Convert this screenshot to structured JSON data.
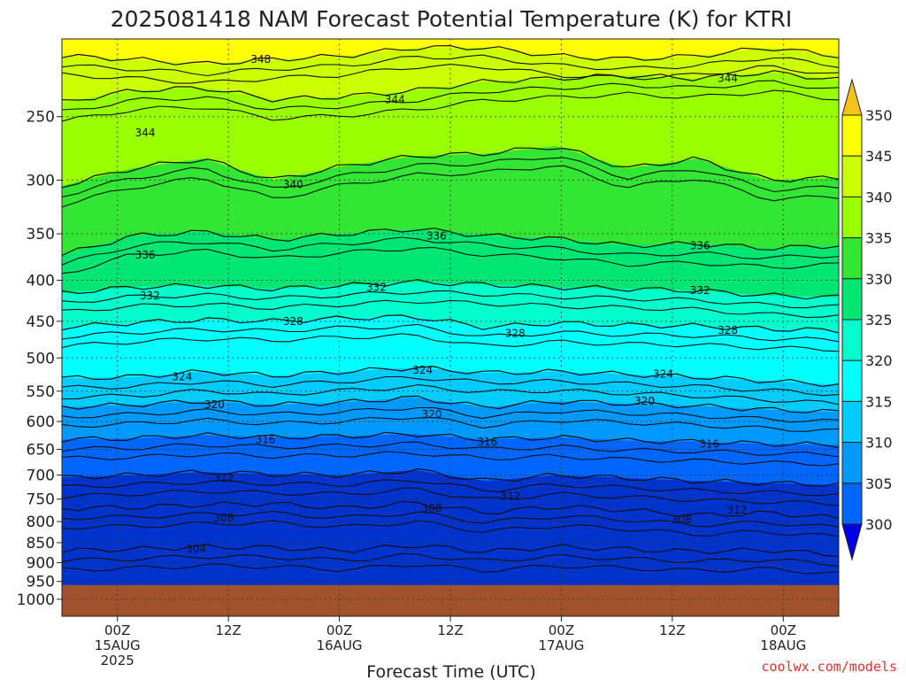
{
  "chart_data": {
    "type": "heatmap",
    "title": "2025081418 NAM Forecast Potential Temperature (K) for KTRI",
    "xlabel": "Forecast Time (UTC)",
    "ylabel": "",
    "y_ticks": [
      "250",
      "300",
      "350",
      "400",
      "450",
      "500",
      "550",
      "600",
      "650",
      "700",
      "750",
      "800",
      "850",
      "900",
      "950",
      "1000"
    ],
    "y_values": [
      250,
      300,
      350,
      400,
      450,
      500,
      550,
      600,
      650,
      700,
      750,
      800,
      850,
      900,
      950,
      1000
    ],
    "ylim": [
      200,
      1050
    ],
    "y_scale": "log-pressure",
    "x_ticks": [
      {
        "hour": 0,
        "lines": [
          "00Z",
          "15AUG",
          "2025"
        ]
      },
      {
        "hour": 12,
        "lines": [
          "12Z"
        ]
      },
      {
        "hour": 24,
        "lines": [
          "00Z",
          "16AUG"
        ]
      },
      {
        "hour": 36,
        "lines": [
          "12Z"
        ]
      },
      {
        "hour": 48,
        "lines": [
          "00Z",
          "17AUG"
        ]
      },
      {
        "hour": 60,
        "lines": [
          "12Z"
        ]
      },
      {
        "hour": 72,
        "lines": [
          "00Z",
          "18AUG"
        ]
      }
    ],
    "xlim": [
      -6,
      78
    ],
    "grid": true,
    "colorbar": {
      "labels": [
        "350",
        "345",
        "340",
        "335",
        "330",
        "325",
        "320",
        "315",
        "310",
        "305",
        "300"
      ],
      "bands": [
        "#f5c218",
        "#ffff00",
        "#ccff00",
        "#99ff00",
        "#33e633",
        "#00e673",
        "#00ffcc",
        "#00ffff",
        "#00ccff",
        "#0099ff",
        "#0066ff",
        "#0033cc"
      ],
      "extend": "both"
    },
    "contour_levels": [
      {
        "theta": 348,
        "pressure": [
          210,
          212,
          215,
          212,
          210,
          205,
          205,
          210,
          212,
          210,
          205,
          210
        ]
      },
      {
        "theta": 344,
        "pressure": [
          240,
          232,
          230,
          238,
          236,
          232,
          226,
          224,
          222,
          224,
          220,
          225
        ]
      },
      {
        "theta": 340,
        "pressure": [
          305,
          290,
          282,
          300,
          288,
          280,
          278,
          272,
          290,
          282,
          300,
          298
        ]
      },
      {
        "theta": 336,
        "pressure": [
          372,
          352,
          348,
          356,
          350,
          345,
          352,
          355,
          362,
          360,
          365,
          362
        ]
      },
      {
        "theta": 332,
        "pressure": [
          415,
          408,
          406,
          410,
          406,
          402,
          405,
          408,
          410,
          412,
          418,
          420
        ]
      },
      {
        "theta": 328,
        "pressure": [
          458,
          452,
          448,
          450,
          446,
          444,
          458,
          452,
          455,
          456,
          460,
          462
        ]
      },
      {
        "theta": 324,
        "pressure": [
          530,
          528,
          520,
          526,
          520,
          514,
          522,
          520,
          524,
          528,
          534,
          540
        ]
      },
      {
        "theta": 320,
        "pressure": [
          576,
          572,
          566,
          572,
          568,
          560,
          576,
          566,
          570,
          574,
          580,
          584
        ]
      },
      {
        "theta": 316,
        "pressure": [
          632,
          630,
          624,
          628,
          626,
          622,
          632,
          628,
          634,
          636,
          640,
          642
        ]
      },
      {
        "theta": 312,
        "pressure": [
          705,
          700,
          694,
          698,
          700,
          690,
          712,
          700,
          706,
          712,
          716,
          720
        ]
      },
      {
        "theta": 308,
        "pressure": [
          770,
          768,
          762,
          760,
          770,
          758,
          780,
          766,
          774,
          786,
          780,
          792
        ]
      },
      {
        "theta": 304,
        "pressure": [
          870,
          866,
          860,
          862,
          870,
          856,
          872,
          860,
          866,
          872,
          868,
          880
        ]
      }
    ],
    "labels_on_plot": [
      {
        "text": "348",
        "hour": 15.5,
        "pressure": 212
      },
      {
        "text": "344",
        "hour": 66,
        "pressure": 224
      },
      {
        "text": "344",
        "hour": 30,
        "pressure": 238
      },
      {
        "text": "344",
        "hour": 3,
        "pressure": 262
      },
      {
        "text": "340",
        "hour": 19,
        "pressure": 304
      },
      {
        "text": "336",
        "hour": 3,
        "pressure": 372
      },
      {
        "text": "336",
        "hour": 34.5,
        "pressure": 352
      },
      {
        "text": "336",
        "hour": 63,
        "pressure": 362
      },
      {
        "text": "332",
        "hour": 3.5,
        "pressure": 418
      },
      {
        "text": "332",
        "hour": 28,
        "pressure": 408
      },
      {
        "text": "332",
        "hour": 63,
        "pressure": 412
      },
      {
        "text": "328",
        "hour": 19,
        "pressure": 450
      },
      {
        "text": "328",
        "hour": 43,
        "pressure": 466
      },
      {
        "text": "328",
        "hour": 66,
        "pressure": 462
      },
      {
        "text": "324",
        "hour": 7,
        "pressure": 528
      },
      {
        "text": "324",
        "hour": 33,
        "pressure": 518
      },
      {
        "text": "324",
        "hour": 59,
        "pressure": 524
      },
      {
        "text": "320",
        "hour": 10.5,
        "pressure": 572
      },
      {
        "text": "320",
        "hour": 34,
        "pressure": 588
      },
      {
        "text": "320",
        "hour": 57,
        "pressure": 566
      },
      {
        "text": "316",
        "hour": 16,
        "pressure": 632
      },
      {
        "text": "316",
        "hour": 40,
        "pressure": 636
      },
      {
        "text": "316",
        "hour": 64,
        "pressure": 640
      },
      {
        "text": "312",
        "hour": 11.5,
        "pressure": 706
      },
      {
        "text": "312",
        "hour": 42.5,
        "pressure": 744
      },
      {
        "text": "312",
        "hour": 67,
        "pressure": 774
      },
      {
        "text": "308",
        "hour": 11.5,
        "pressure": 792
      },
      {
        "text": "308",
        "hour": 34,
        "pressure": 770
      },
      {
        "text": "308",
        "hour": 61,
        "pressure": 796
      },
      {
        "text": "304",
        "hour": 8.5,
        "pressure": 866
      }
    ],
    "terrain": {
      "color": "#a0522d",
      "pressure_top": 960
    }
  },
  "credit": "coolwx.com/models"
}
